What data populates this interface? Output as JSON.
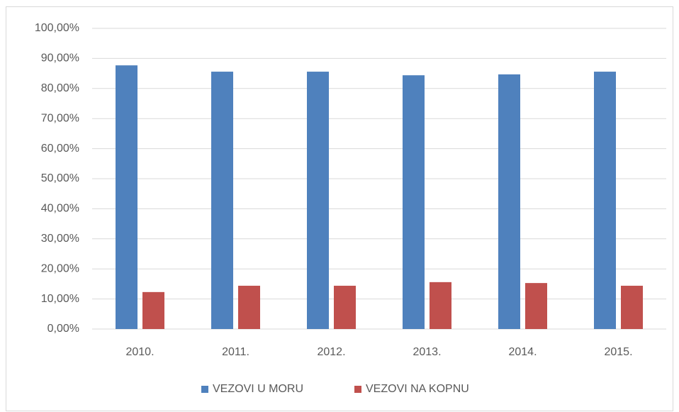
{
  "chart_data": {
    "type": "bar",
    "categories": [
      "2010.",
      "2011.",
      "2012.",
      "2013.",
      "2014.",
      "2015."
    ],
    "series": [
      {
        "name": "VEZOVI U MORU",
        "color": "#4f81bd",
        "values": [
          87.7,
          85.6,
          85.6,
          84.4,
          84.7,
          85.6
        ]
      },
      {
        "name": "VEZOVI NA KOPNU",
        "color": "#c0504d",
        "values": [
          12.3,
          14.4,
          14.4,
          15.6,
          15.3,
          14.4
        ]
      }
    ],
    "ylim": [
      0,
      100
    ],
    "yticks": [
      {
        "value": 0,
        "label": "0,00%"
      },
      {
        "value": 10,
        "label": "10,00%"
      },
      {
        "value": 20,
        "label": "20,00%"
      },
      {
        "value": 30,
        "label": "30,00%"
      },
      {
        "value": 40,
        "label": "40,00%"
      },
      {
        "value": 50,
        "label": "50,00%"
      },
      {
        "value": 60,
        "label": "60,00%"
      },
      {
        "value": 70,
        "label": "70,00%"
      },
      {
        "value": 80,
        "label": "80,00%"
      },
      {
        "value": 90,
        "label": "90,00%"
      },
      {
        "value": 100,
        "label": "100,00%"
      }
    ],
    "grid": true,
    "legend": "bottom"
  }
}
